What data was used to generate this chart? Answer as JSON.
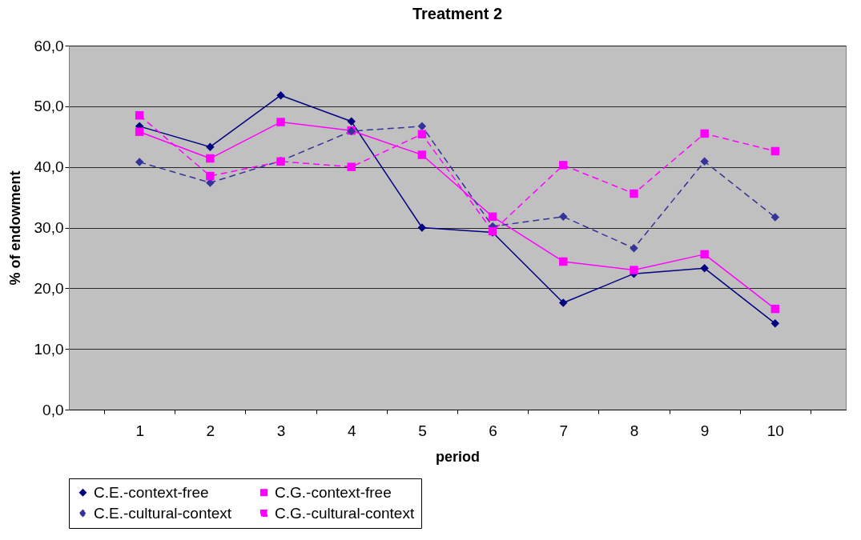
{
  "chart_data": {
    "type": "line",
    "title": "Treatment 2",
    "xlabel": "period",
    "ylabel": "% of endowment",
    "categories": [
      "1",
      "2",
      "3",
      "4",
      "5",
      "6",
      "7",
      "8",
      "9",
      "10"
    ],
    "series": [
      {
        "name": "C.E.-context-free",
        "color": "#000080",
        "marker": "diamond",
        "line_style": "solid",
        "values": [
          46.7,
          43.3,
          51.8,
          47.5,
          30.0,
          29.2,
          17.6,
          22.4,
          23.3,
          14.2
        ]
      },
      {
        "name": "C.G.-context-free",
        "color": "#ff00ff",
        "marker": "square",
        "line_style": "solid",
        "values": [
          45.8,
          41.4,
          47.4,
          46.0,
          42.0,
          31.8,
          24.4,
          23.0,
          25.6,
          16.6
        ]
      },
      {
        "name": "C.E.-cultural-context",
        "color": "#333399",
        "marker": "diamond",
        "line_style": "dashed",
        "values": [
          40.8,
          37.4,
          41.0,
          45.9,
          46.7,
          30.2,
          31.8,
          26.6,
          40.9,
          31.7
        ]
      },
      {
        "name": "C.G.-cultural-context",
        "color": "#ff00ff",
        "marker": "square",
        "line_style": "dashed",
        "values": [
          48.5,
          38.5,
          40.9,
          40.0,
          45.4,
          29.4,
          40.3,
          35.6,
          45.5,
          42.6
        ]
      }
    ],
    "ylim": [
      0,
      60
    ],
    "yticks": [
      {
        "value": 0,
        "label": "0,0"
      },
      {
        "value": 10,
        "label": "10,0"
      },
      {
        "value": 20,
        "label": "20,0"
      },
      {
        "value": 30,
        "label": "30,0"
      },
      {
        "value": 40,
        "label": "40,0"
      },
      {
        "value": 50,
        "label": "50,0"
      },
      {
        "value": 60,
        "label": "60,0"
      }
    ],
    "grid": "y",
    "legend": "bottom"
  }
}
